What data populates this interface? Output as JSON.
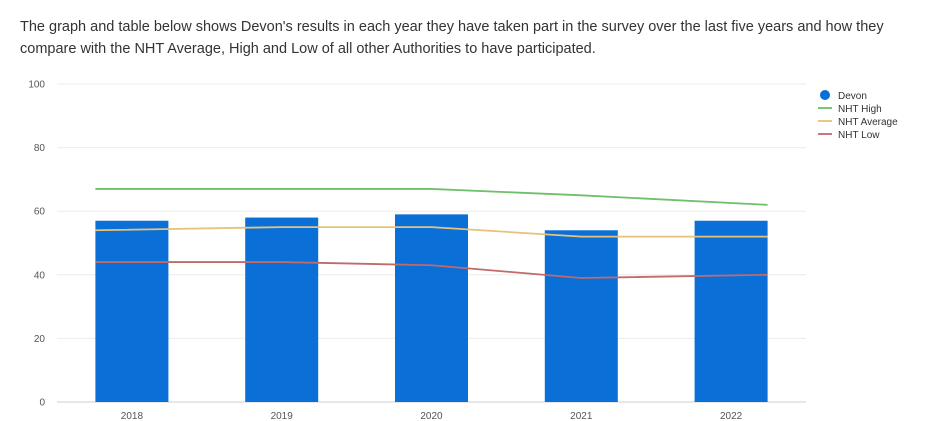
{
  "intro_text": "The graph and table below shows Devon's results in each year they have taken part in the survey over the last five years and how they compare with the NHT Average, High and Low of all other Authorities to have participated.",
  "chart_data": {
    "type": "bar",
    "title": "",
    "xlabel": "",
    "ylabel": "",
    "ylim": [
      0,
      100
    ],
    "yticks": [
      0,
      20,
      40,
      60,
      80,
      100
    ],
    "grid": true,
    "legend_position": "top-right",
    "categories": [
      "2018",
      "2019",
      "2020",
      "2021",
      "2022"
    ],
    "series": [
      {
        "name": "Devon",
        "kind": "bar",
        "color": "#0a6fd6",
        "values": [
          57,
          58,
          59,
          54,
          57
        ]
      },
      {
        "name": "NHT High",
        "kind": "line",
        "color": "#6fbf6b",
        "values": [
          67,
          67,
          67,
          65,
          62
        ]
      },
      {
        "name": "NHT Average",
        "kind": "line",
        "color": "#e6c27a",
        "values": [
          54,
          55,
          55,
          52,
          52
        ]
      },
      {
        "name": "NHT Low",
        "kind": "line",
        "color": "#c06a6a",
        "values": [
          44,
          44,
          43,
          39,
          40
        ]
      }
    ]
  }
}
